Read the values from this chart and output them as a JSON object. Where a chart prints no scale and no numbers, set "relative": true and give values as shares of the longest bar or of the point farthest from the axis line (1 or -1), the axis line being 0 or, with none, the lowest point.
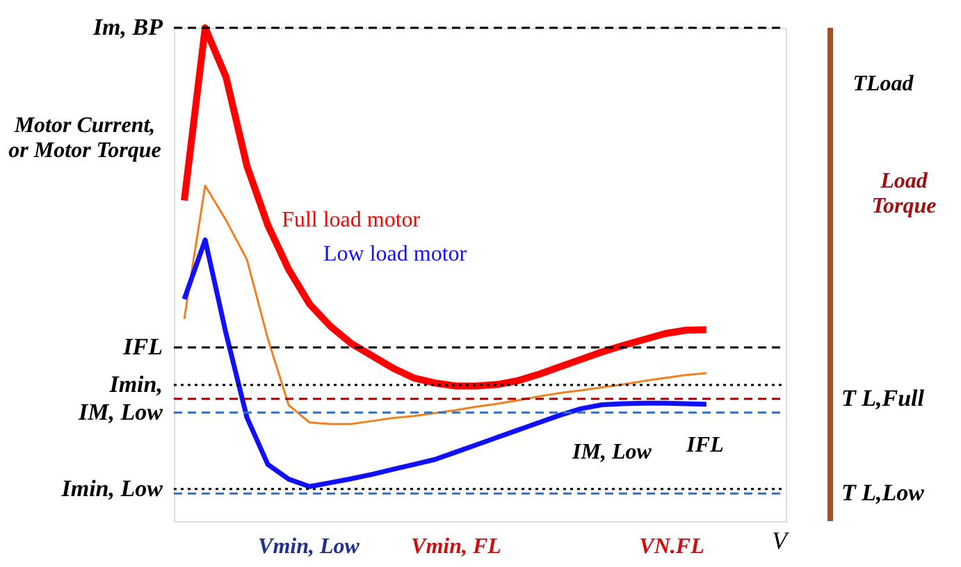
{
  "chart_data": {
    "type": "line",
    "relative": true,
    "ylabel": "Motor Current,\nor Motor Torque",
    "xlabel": "V",
    "marker": "none",
    "line_style": "solid",
    "categories": [
      null,
      null,
      null,
      null,
      null,
      null,
      null,
      null,
      null,
      null,
      null,
      null,
      null,
      null,
      null,
      null,
      null,
      null,
      null,
      null,
      null,
      null,
      null,
      null,
      null,
      null
    ],
    "series": [
      {
        "name": "Full load motor",
        "color": "#ff0000",
        "values": [
          0.65,
          1.0,
          0.9,
          0.72,
          0.6,
          0.51,
          0.44,
          0.395,
          0.36,
          0.335,
          0.31,
          0.29,
          0.28,
          0.274,
          0.274,
          0.277,
          0.285,
          0.298,
          0.313,
          0.328,
          0.343,
          0.356,
          0.368,
          0.38,
          0.387,
          0.388
        ]
      },
      {
        "color": "#f08020",
        "values": [
          0.41,
          0.68,
          0.61,
          0.53,
          0.37,
          0.235,
          0.2,
          0.197,
          0.197,
          0.203,
          0.209,
          0.213,
          0.219,
          0.225,
          0.232,
          0.238,
          0.245,
          0.253,
          0.26,
          0.265,
          0.271,
          0.277,
          0.284,
          0.29,
          0.296,
          0.3
        ]
      },
      {
        "name": "Low load motor",
        "color": "#1010ff",
        "values": [
          0.45,
          0.57,
          0.38,
          0.21,
          0.115,
          0.085,
          0.07,
          0.078,
          0.086,
          0.095,
          0.105,
          0.115,
          0.125,
          0.14,
          0.155,
          0.17,
          0.185,
          0.2,
          0.215,
          0.228,
          0.236,
          0.238,
          0.239,
          0.239,
          0.238,
          0.237
        ]
      }
    ],
    "ref_lines": [
      {
        "axis": "y",
        "value": 1.0,
        "label": "Im, BP",
        "color": "#000000",
        "line_style": "dashed"
      },
      {
        "axis": "y",
        "value": 0.352,
        "label": "IFL",
        "color": "#000000",
        "line_style": "dashed"
      },
      {
        "axis": "y",
        "value": 0.276,
        "label": "Imin,",
        "color": "#000000",
        "line_style": "dotted"
      },
      {
        "axis": "y",
        "value": 0.22,
        "label": "IM, Low",
        "color": "#3070c0",
        "line_style": "dashed"
      },
      {
        "axis": "y",
        "value": 0.065,
        "label": "Imin, Low",
        "color": "#000000",
        "line_style": "dotted"
      },
      {
        "axis": "y",
        "value": 0.248,
        "label": "T L,Full",
        "color": "#a00000",
        "line_style": "dashed"
      },
      {
        "axis": "y",
        "value": 0.056,
        "label": "T L,Low",
        "color": "#3070c0",
        "line_style": "dashed"
      }
    ],
    "annotations": [
      "Vmin, Low",
      "Vmin, FL",
      "VN.FL",
      "IM, Low",
      "IFL",
      "Load\nTorque",
      "TLoad"
    ]
  }
}
